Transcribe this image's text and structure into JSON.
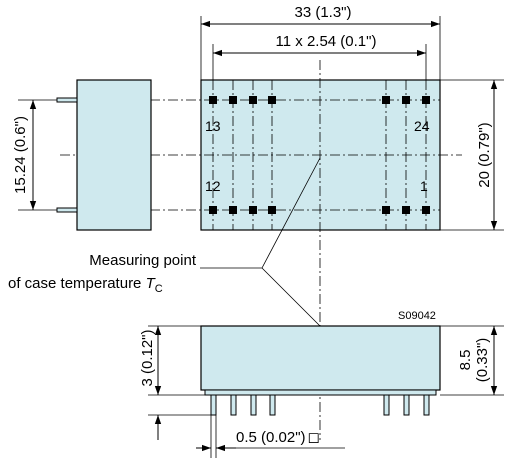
{
  "dimensions": {
    "overall_width": "33 (1.3\")",
    "pitch_span": "11 x 2.54 (0.1\")",
    "body_height": "20 (0.79\")",
    "row_spacing": "15.24 (0.6\")",
    "case_height": "8.5",
    "case_height_inch": "(0.33\")",
    "standoff": "3 (0.12\")",
    "pin_size": "0.5 (0.02\")"
  },
  "pin_labels": {
    "top_left": "13",
    "top_right": "24",
    "bottom_left": "12",
    "bottom_right": "1"
  },
  "annotation": {
    "line1": "Measuring point",
    "line2": "of case temperature",
    "symbol": "T",
    "subscript": "C"
  },
  "drawing_code": "S09042",
  "square_symbol": "◻"
}
